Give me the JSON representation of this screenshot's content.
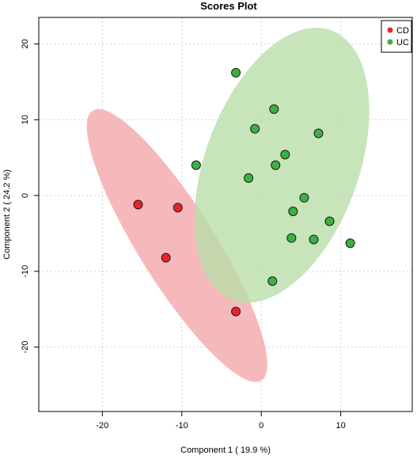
{
  "chart_data": {
    "type": "scatter",
    "title": "Scores Plot",
    "xlabel": "Component 1 ( 19.9 %)",
    "ylabel": "Component 2 ( 24.2 %)",
    "xlim": [
      -28,
      19
    ],
    "ylim": [
      -28.5,
      23.5
    ],
    "xticks": [
      -20,
      -10,
      0,
      10
    ],
    "yticks": [
      20,
      10,
      0,
      -10,
      -20
    ],
    "grid": true,
    "legend_position": "top-right",
    "series": [
      {
        "name": "CD",
        "color": "#e8252a",
        "ellipse_color": "#f4a5a8",
        "points": [
          {
            "x": -15.5,
            "y": -1.2
          },
          {
            "x": -10.5,
            "y": -1.6
          },
          {
            "x": -12.0,
            "y": -8.2
          },
          {
            "x": -3.2,
            "y": -15.3
          }
        ],
        "ellipse": {
          "cx": -10.6,
          "cy": -6.6,
          "rx": 20.5,
          "ry": 4.9,
          "angle_deg": 58
        }
      },
      {
        "name": "UC",
        "color": "#3cb043",
        "ellipse_color": "#b7dca8",
        "points": [
          {
            "x": -3.2,
            "y": 16.2
          },
          {
            "x": 1.6,
            "y": 11.4
          },
          {
            "x": -0.8,
            "y": 8.8
          },
          {
            "x": 7.2,
            "y": 8.2
          },
          {
            "x": -8.2,
            "y": 4.0
          },
          {
            "x": 3.0,
            "y": 5.4
          },
          {
            "x": 1.8,
            "y": 4.0
          },
          {
            "x": -1.6,
            "y": 2.3
          },
          {
            "x": 5.4,
            "y": -0.3
          },
          {
            "x": 4.0,
            "y": -2.1
          },
          {
            "x": 8.6,
            "y": -3.4
          },
          {
            "x": 3.8,
            "y": -5.6
          },
          {
            "x": 6.6,
            "y": -5.8
          },
          {
            "x": 11.2,
            "y": -6.3
          },
          {
            "x": 1.4,
            "y": -11.3
          }
        ],
        "ellipse": {
          "cx": 2.6,
          "cy": 4.0,
          "rx": 18.5,
          "ry": 9.9,
          "angle_deg": -70
        }
      }
    ]
  }
}
